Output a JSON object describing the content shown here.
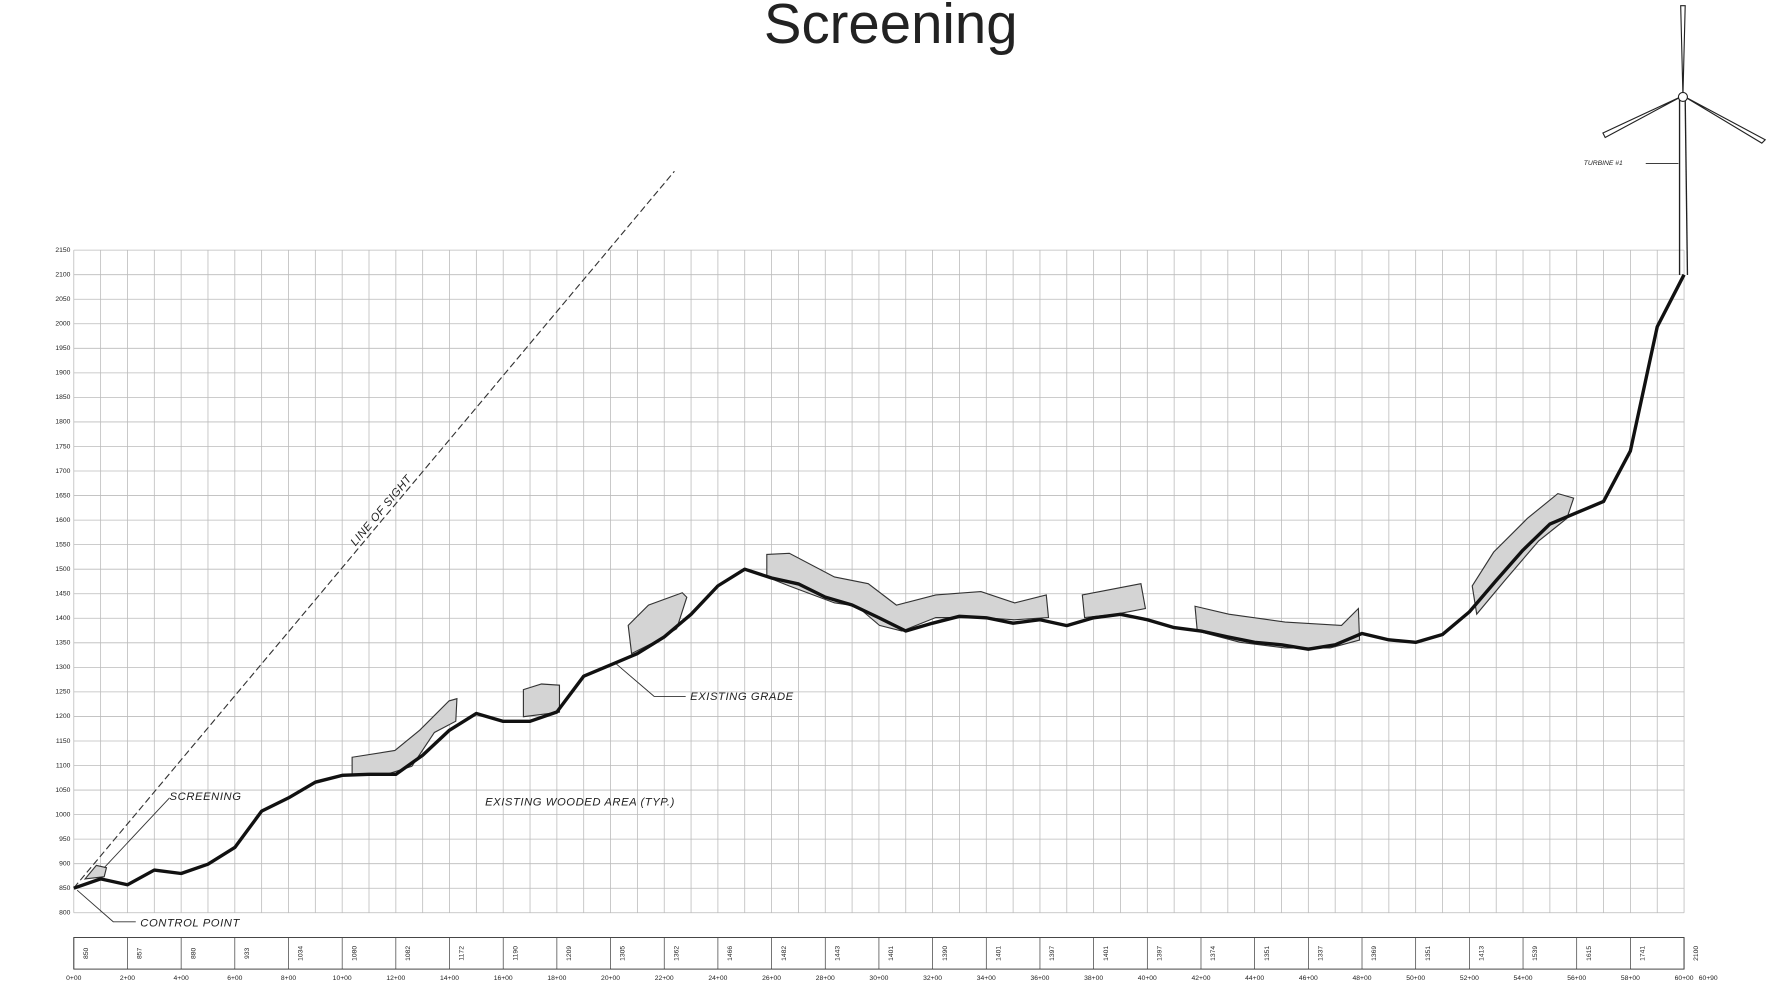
{
  "chart_data": {
    "type": "line",
    "title": "Screening",
    "annotations": [
      "LINE OF SIGHT",
      "SCREENING",
      "EXISTING WOODED AREA (TYP.)",
      "EXISTING GRADE",
      "CONTROL POINT",
      "TURBINE #1"
    ],
    "x": [
      0,
      1,
      2,
      3,
      4,
      5,
      6,
      7,
      8,
      9,
      10,
      11,
      12,
      13,
      14,
      15,
      16,
      17,
      18,
      19,
      20,
      21,
      22,
      23,
      24,
      25,
      26,
      27,
      28,
      29,
      30,
      31,
      32,
      33,
      34,
      35,
      36,
      37,
      38,
      39,
      40,
      41,
      42,
      43,
      44,
      45,
      46,
      47,
      48,
      49,
      50,
      51,
      52,
      53,
      54,
      55,
      56,
      57,
      58,
      59,
      60
    ],
    "series": [
      {
        "name": "EXISTING GRADE",
        "color": "#111111",
        "values": [
          850,
          869,
          857,
          887,
          880,
          899,
          933,
          1007,
          1034,
          1066,
          1080,
          1082,
          1082,
          1121,
          1172,
          1206,
          1190,
          1190,
          1209,
          1282,
          1305,
          1328,
          1362,
          1408,
          1466,
          1500,
          1482,
          1470,
          1443,
          1427,
          1401,
          1374,
          1390,
          1404,
          1401,
          1390,
          1397,
          1385,
          1401,
          1408,
          1397,
          1381,
          1374,
          1362,
          1351,
          1346,
          1337,
          1346,
          1369,
          1356,
          1351,
          1367,
          1413,
          1477,
          1539,
          1592,
          1615,
          1638,
          1741,
          1994,
          2100
        ]
      }
    ],
    "xlim": [
      0,
      60
    ],
    "xticks": [
      {
        "value": 0,
        "label": "0+00"
      },
      {
        "value": 2,
        "label": "2+00"
      },
      {
        "value": 4,
        "label": "4+00"
      },
      {
        "value": 6,
        "label": "6+00"
      },
      {
        "value": 8,
        "label": "8+00"
      },
      {
        "value": 10,
        "label": "10+00"
      },
      {
        "value": 12,
        "label": "12+00"
      },
      {
        "value": 14,
        "label": "14+00"
      },
      {
        "value": 16,
        "label": "16+00"
      },
      {
        "value": 18,
        "label": "18+00"
      },
      {
        "value": 20,
        "label": "20+00"
      },
      {
        "value": 22,
        "label": "22+00"
      },
      {
        "value": 24,
        "label": "24+00"
      },
      {
        "value": 26,
        "label": "26+00"
      },
      {
        "value": 28,
        "label": "28+00"
      },
      {
        "value": 30,
        "label": "30+00"
      },
      {
        "value": 32,
        "label": "32+00"
      },
      {
        "value": 34,
        "label": "34+00"
      },
      {
        "value": 36,
        "label": "36+00"
      },
      {
        "value": 38,
        "label": "38+00"
      },
      {
        "value": 40,
        "label": "40+00"
      },
      {
        "value": 42,
        "label": "42+00"
      },
      {
        "value": 44,
        "label": "44+00"
      },
      {
        "value": 46,
        "label": "46+00"
      },
      {
        "value": 48,
        "label": "48+00"
      },
      {
        "value": 50,
        "label": "50+00"
      },
      {
        "value": 52,
        "label": "52+00"
      },
      {
        "value": 54,
        "label": "54+00"
      },
      {
        "value": 56,
        "label": "56+00"
      },
      {
        "value": 58,
        "label": "58+00"
      },
      {
        "value": 60,
        "label": "60+00"
      },
      {
        "value": 60.9,
        "label": "60+90"
      }
    ],
    "ylim": [
      800,
      2150
    ],
    "yticks": [
      800,
      850,
      900,
      950,
      1000,
      1050,
      1100,
      1150,
      1200,
      1250,
      1300,
      1350,
      1400,
      1450,
      1500,
      1550,
      1600,
      1650,
      1700,
      1750,
      1800,
      1850,
      1900,
      1950,
      2000,
      2050,
      2100,
      2150
    ],
    "grid": true
  }
}
